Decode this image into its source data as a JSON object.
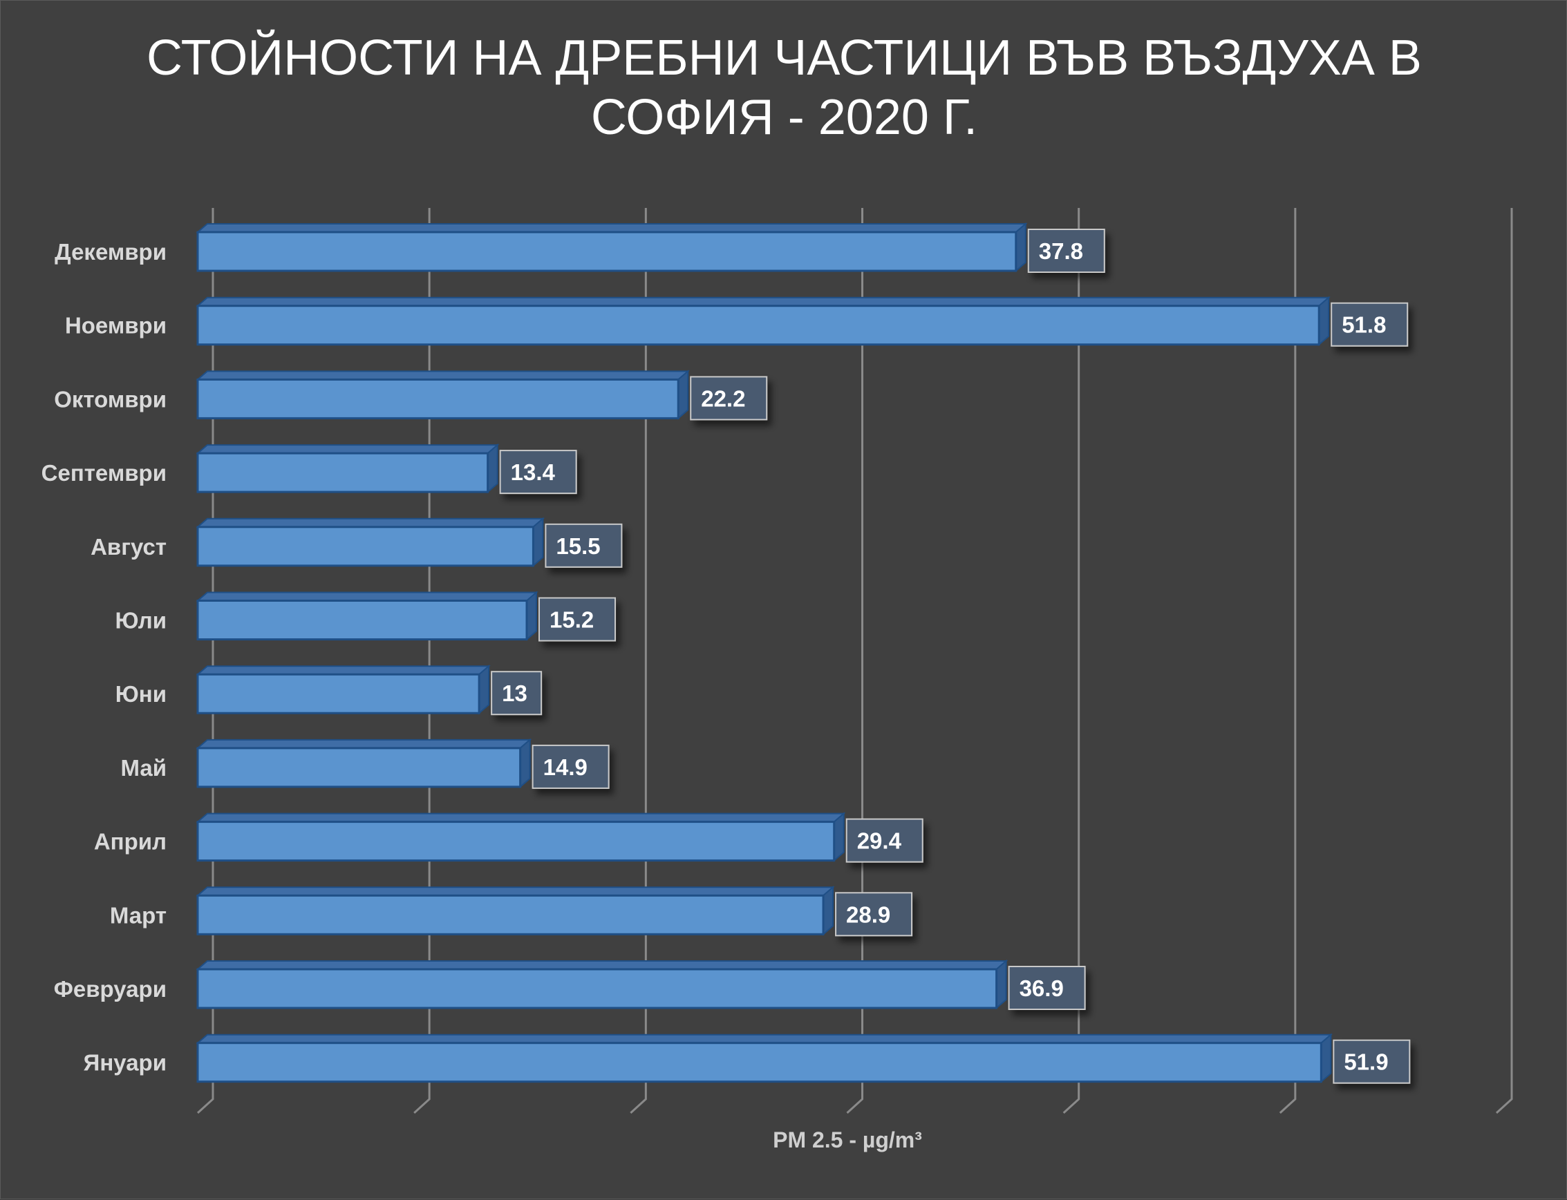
{
  "chart_data": {
    "type": "bar",
    "orientation": "horizontal",
    "title": "СТОЙНОСТИ НА ДРЕБНИ ЧАСТИЦИ ВЪВ ВЪЗДУХА В\nСОФИЯ - 2020 Г.",
    "xlabel": "PM 2.5 - µg/m³",
    "ylabel": "",
    "categories": [
      "Януари",
      "Февруари",
      "Март",
      "Април",
      "Май",
      "Юни",
      "Юли",
      "Август",
      "Септември",
      "Октомври",
      "Ноември",
      "Декември"
    ],
    "values": [
      51.9,
      36.9,
      28.9,
      29.4,
      14.9,
      13,
      15.2,
      15.5,
      13.4,
      22.2,
      51.8,
      37.8
    ],
    "value_labels": [
      "51.9",
      "36.9",
      "28.9",
      "29.4",
      "14.9",
      "13",
      "15.2",
      "15.5",
      "13.4",
      "22.2",
      "51.8",
      "37.8"
    ],
    "xlim": [
      0,
      60
    ],
    "grid": true,
    "legend": "none",
    "colors": {
      "bar_front": "#5b94cf",
      "bar_top": "#3f6da6",
      "bar_side": "#2f5a8e",
      "bar_border": "#1f4f86",
      "label_box": "#4a5a70",
      "gridline": "#8a8a8a",
      "background": "#404040"
    }
  }
}
